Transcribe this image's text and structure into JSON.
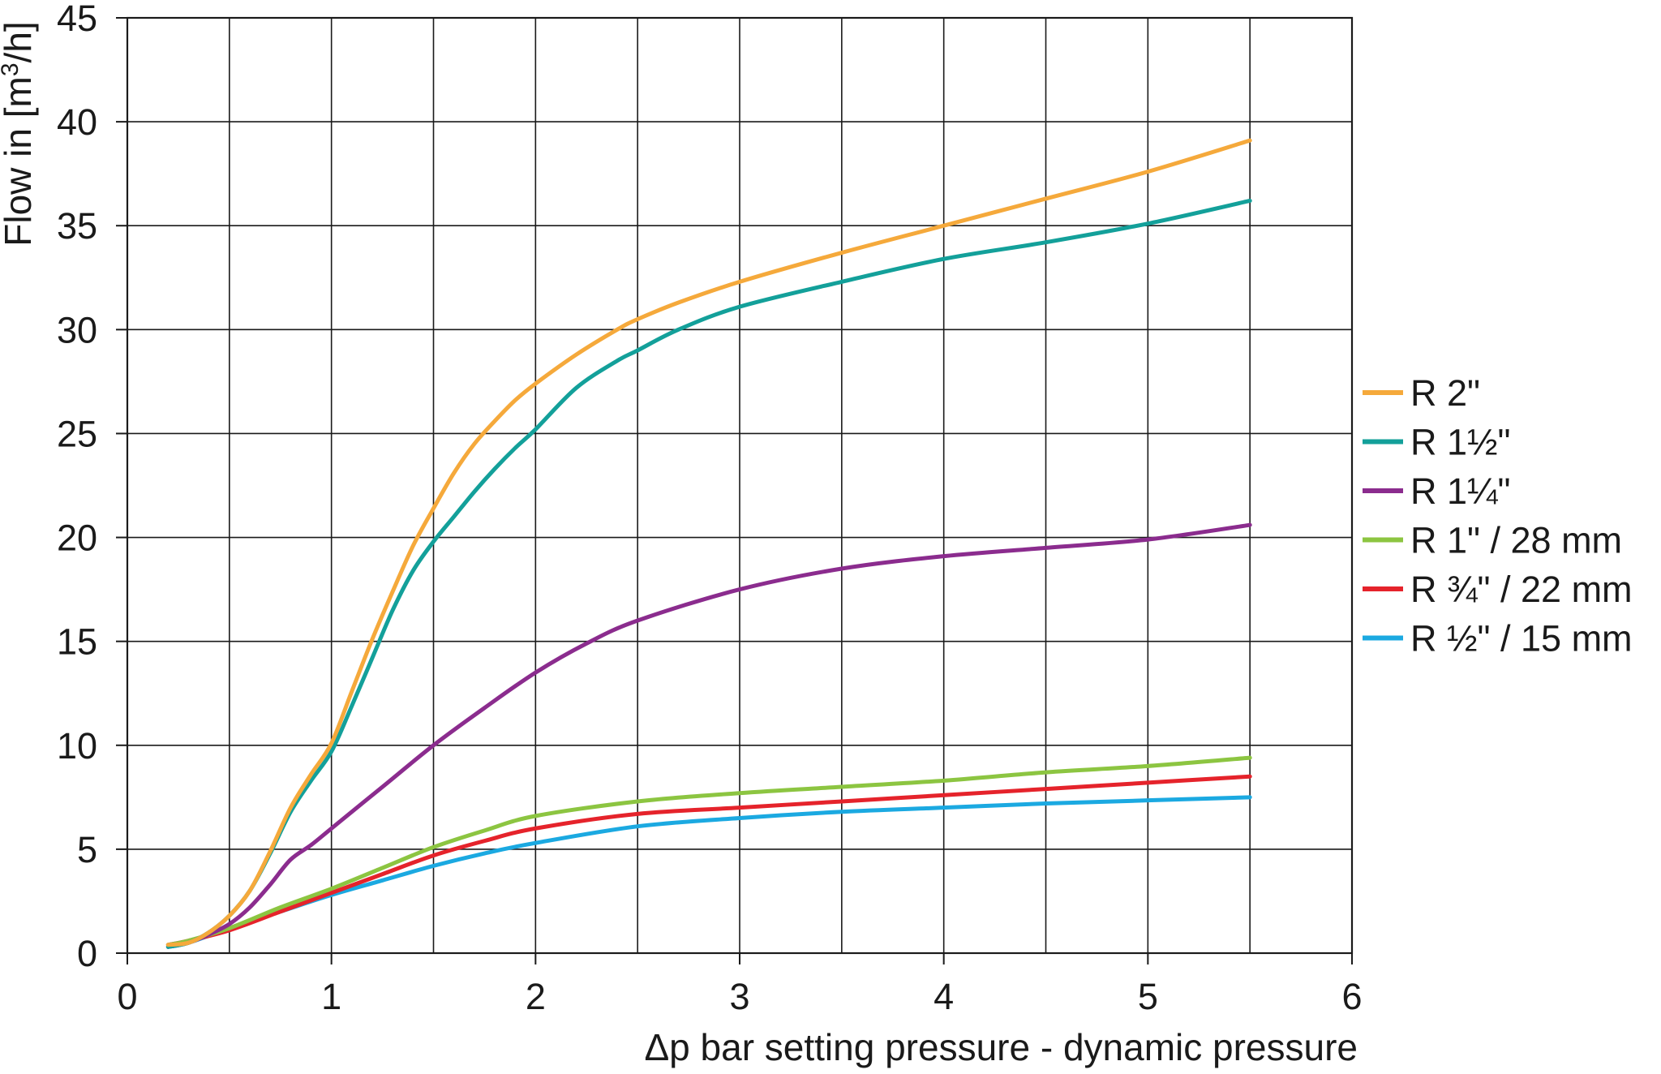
{
  "chart_data": {
    "type": "line",
    "title": "",
    "xlabel": "Δp bar setting pressure - dynamic pressure",
    "ylabel_main": "Flow in [m",
    "ylabel_sup": "3",
    "ylabel_end": "/h]",
    "xlim": [
      0,
      6
    ],
    "ylim": [
      0,
      45
    ],
    "x_ticks": [
      0,
      1,
      2,
      3,
      4,
      5,
      6
    ],
    "x_tick_labels": [
      "0",
      "1",
      "2",
      "3",
      "4",
      "5",
      "6"
    ],
    "y_ticks": [
      0,
      5,
      10,
      15,
      20,
      25,
      30,
      35,
      40,
      45
    ],
    "y_tick_labels": [
      "0",
      "5",
      "10",
      "15",
      "20",
      "25",
      "30",
      "35",
      "40",
      "45"
    ],
    "grid": {
      "x_step": 0.5,
      "y_step": 5,
      "visible": true
    },
    "legend_position": "right",
    "series": [
      {
        "name": "R 2\"",
        "color": "#F5A93B",
        "x": [
          0.2,
          0.3,
          0.4,
          0.5,
          0.6,
          0.7,
          0.8,
          0.9,
          1.0,
          1.1,
          1.2,
          1.3,
          1.4,
          1.5,
          1.6,
          1.7,
          1.8,
          1.9,
          2.0,
          2.2,
          2.4,
          2.5,
          2.7,
          3.0,
          3.5,
          4.0,
          4.5,
          5.0,
          5.5
        ],
        "y": [
          0.4,
          0.5,
          1.0,
          1.8,
          3.0,
          4.9,
          7.0,
          8.6,
          10.1,
          12.6,
          15.1,
          17.4,
          19.6,
          21.4,
          23.1,
          24.5,
          25.6,
          26.6,
          27.4,
          28.8,
          30.0,
          30.5,
          31.3,
          32.3,
          33.7,
          35.0,
          36.3,
          37.6,
          39.1
        ]
      },
      {
        "name": "R 1½\"",
        "color": "#13A09A",
        "x": [
          0.2,
          0.3,
          0.4,
          0.5,
          0.6,
          0.7,
          0.8,
          0.9,
          1.0,
          1.1,
          1.2,
          1.3,
          1.4,
          1.5,
          1.6,
          1.7,
          1.8,
          1.9,
          2.0,
          2.2,
          2.4,
          2.5,
          2.7,
          3.0,
          3.5,
          4.0,
          4.5,
          5.0,
          5.5
        ],
        "y": [
          0.3,
          0.5,
          1.0,
          1.8,
          3.0,
          4.8,
          6.8,
          8.3,
          9.7,
          11.9,
          14.2,
          16.5,
          18.4,
          19.8,
          21.0,
          22.2,
          23.3,
          24.3,
          25.2,
          27.2,
          28.5,
          29.0,
          30.0,
          31.1,
          32.3,
          33.4,
          34.2,
          35.1,
          36.2
        ]
      },
      {
        "name": "R 1¼\"",
        "color": "#8B2C8E",
        "x": [
          0.2,
          0.3,
          0.4,
          0.5,
          0.6,
          0.7,
          0.8,
          0.9,
          1.0,
          1.25,
          1.5,
          1.75,
          2.0,
          2.25,
          2.5,
          3.0,
          3.5,
          4.0,
          4.5,
          5.0,
          5.5
        ],
        "y": [
          0.3,
          0.5,
          0.9,
          1.4,
          2.2,
          3.3,
          4.5,
          5.2,
          6.0,
          8.0,
          10.0,
          11.8,
          13.5,
          14.9,
          16.0,
          17.5,
          18.5,
          19.1,
          19.5,
          19.9,
          20.6
        ]
      },
      {
        "name": "R 1\" / 28 mm",
        "color": "#8CC541",
        "x": [
          0.2,
          0.3,
          0.5,
          0.75,
          1.0,
          1.25,
          1.5,
          1.75,
          2.0,
          2.5,
          3.0,
          3.5,
          4.0,
          4.5,
          5.0,
          5.5
        ],
        "y": [
          0.4,
          0.6,
          1.2,
          2.2,
          3.1,
          4.1,
          5.1,
          5.9,
          6.6,
          7.3,
          7.7,
          8.0,
          8.3,
          8.7,
          9.0,
          9.4
        ]
      },
      {
        "name": "R ¾\" / 22 mm",
        "color": "#E5232B",
        "x": [
          0.2,
          0.3,
          0.5,
          0.75,
          1.0,
          1.25,
          1.5,
          1.75,
          2.0,
          2.5,
          3.0,
          3.5,
          4.0,
          4.5,
          5.0,
          5.5
        ],
        "y": [
          0.4,
          0.6,
          1.1,
          2.0,
          2.9,
          3.8,
          4.7,
          5.4,
          6.0,
          6.7,
          7.0,
          7.3,
          7.6,
          7.9,
          8.2,
          8.5
        ]
      },
      {
        "name": "R ½\" / 15 mm",
        "color": "#1BA9E1",
        "x": [
          0.2,
          0.3,
          0.5,
          0.75,
          1.0,
          1.25,
          1.5,
          1.75,
          2.0,
          2.5,
          3.0,
          3.5,
          4.0,
          4.5,
          5.0,
          5.5
        ],
        "y": [
          0.3,
          0.5,
          1.2,
          2.0,
          2.8,
          3.5,
          4.2,
          4.8,
          5.3,
          6.1,
          6.5,
          6.8,
          7.0,
          7.2,
          7.35,
          7.5
        ]
      }
    ]
  }
}
